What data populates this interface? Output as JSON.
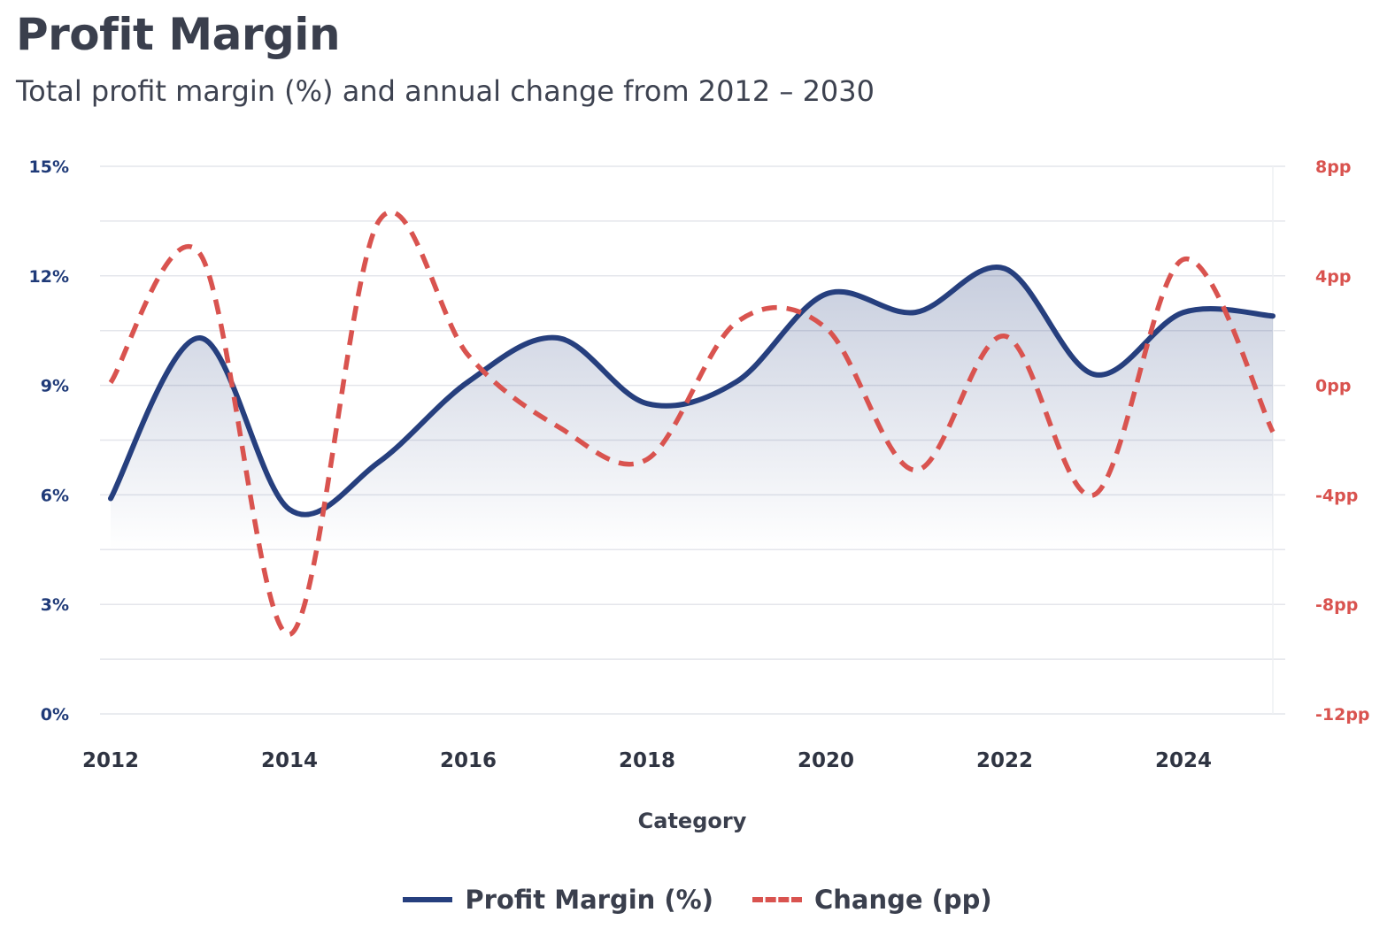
{
  "header": {
    "title": "Profit Margin",
    "subtitle": "Total profit margin (%) and annual change from 2012 – 2030"
  },
  "chart_data": {
    "type": "line",
    "title": "Profit Margin",
    "subtitle": "Total profit margin (%) and annual change from 2012 – 2030",
    "xlabel": "Category",
    "x": [
      2012,
      2013,
      2014,
      2015,
      2016,
      2017,
      2018,
      2019,
      2020,
      2021,
      2022,
      2023,
      2024,
      2025
    ],
    "x_ticks": [
      "2012",
      "2014",
      "2016",
      "2018",
      "2020",
      "2022",
      "2024"
    ],
    "y_left": {
      "lim": [
        0,
        15
      ],
      "ticks": [
        "0%",
        "3%",
        "6%",
        "9%",
        "12%",
        "15%"
      ],
      "values": [
        0,
        3,
        6,
        9,
        12,
        15
      ]
    },
    "y_right": {
      "lim": [
        -12,
        8
      ],
      "ticks": [
        "-12pp",
        "-8pp",
        "-4pp",
        "0pp",
        "4pp",
        "8pp"
      ],
      "values": [
        -12,
        -8,
        -4,
        0,
        4,
        8
      ]
    },
    "grid": true,
    "legend_position": "bottom-center",
    "series": [
      {
        "name": "Profit Margin (%)",
        "axis": "left",
        "style": "solid",
        "area": true,
        "color": "#263f7e",
        "values": [
          5.9,
          10.3,
          5.6,
          6.9,
          9.1,
          10.3,
          8.5,
          9.1,
          11.5,
          11.0,
          12.2,
          9.3,
          11.0,
          10.9
        ]
      },
      {
        "name": "Change (pp)",
        "axis": "right",
        "style": "dashed",
        "color": "#d9534f",
        "values": [
          0.1,
          4.8,
          -9.1,
          6.0,
          1.1,
          -1.5,
          -2.7,
          2.3,
          2.1,
          -3.1,
          1.8,
          -4.0,
          4.6,
          -1.7
        ]
      }
    ]
  }
}
